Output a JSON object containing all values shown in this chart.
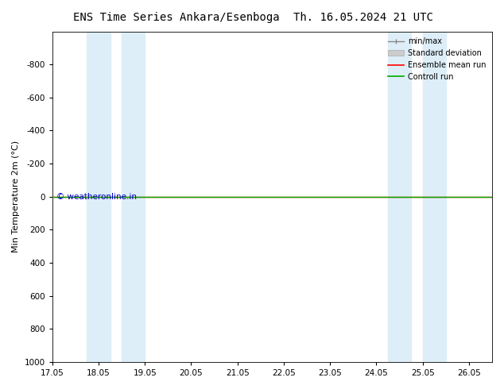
{
  "title_left": "ENS Time Series Ankara/Esenboga",
  "title_right": "Th. 16.05.2024 21 UTC",
  "ylabel": "Min Temperature 2m (°C)",
  "ylim_bottom": 1000,
  "ylim_top": -1000,
  "yticks": [
    -800,
    -600,
    -400,
    -200,
    0,
    200,
    400,
    600,
    800,
    1000
  ],
  "xlim_start": 0.0,
  "xlim_end": 9.5,
  "xtick_labels": [
    "17.05",
    "18.05",
    "19.05",
    "20.05",
    "21.05",
    "22.05",
    "23.05",
    "24.05",
    "25.05",
    "26.05"
  ],
  "xtick_positions": [
    0,
    1,
    2,
    3,
    4,
    5,
    6,
    7,
    8,
    9
  ],
  "blue_bands": [
    [
      0.75,
      1.25
    ],
    [
      1.5,
      2.0
    ],
    [
      7.25,
      7.75
    ],
    [
      8.0,
      8.5
    ]
  ],
  "blue_band_color": "#ddeef8",
  "ensemble_mean_color": "#ff0000",
  "control_run_color": "#00aa00",
  "line_width": 1.0,
  "watermark": "© weatheronline.in",
  "watermark_color": "#0000cc",
  "bg_color": "#ffffff",
  "legend_items": [
    "min/max",
    "Standard deviation",
    "Ensemble mean run",
    "Controll run"
  ],
  "legend_colors_line": [
    "#888888",
    "#aaaaaa",
    "#ff0000",
    "#00aa00"
  ],
  "title_fontsize": 10,
  "axis_fontsize": 8,
  "tick_fontsize": 7.5
}
